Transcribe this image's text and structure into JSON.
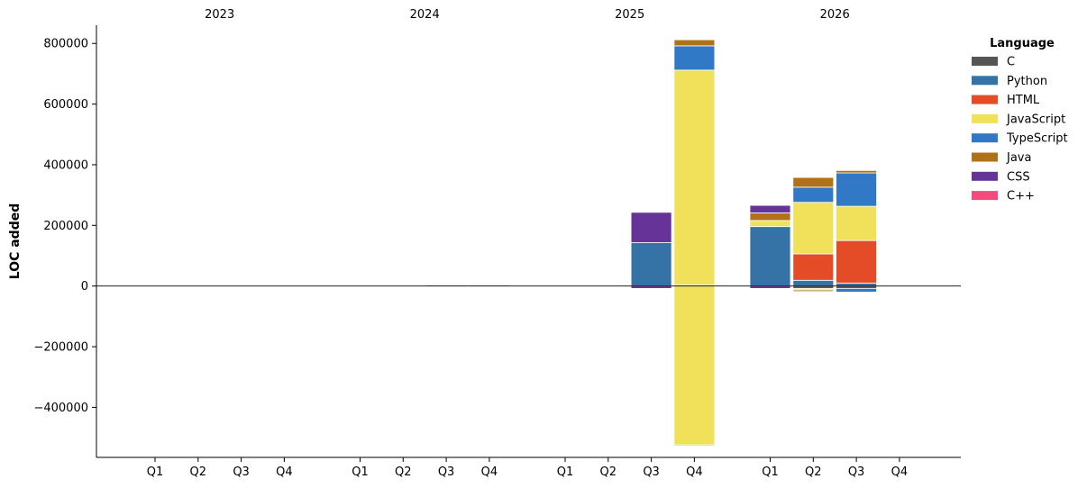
{
  "chart_data": {
    "type": "bar",
    "stacked": true,
    "ylabel": "LOC added",
    "ylim": [
      -565000,
      860000
    ],
    "yticks": [
      -400000,
      -200000,
      0,
      200000,
      400000,
      600000,
      800000
    ],
    "ytick_labels": [
      "−400000",
      "−200000",
      "0",
      "200000",
      "400000",
      "600000",
      "800000"
    ],
    "years": [
      "2023",
      "2024",
      "2025",
      "2026"
    ],
    "quarters": [
      "Q1",
      "Q2",
      "Q3",
      "Q4"
    ],
    "legend": {
      "title": "Language",
      "placement": "right-outside-top",
      "entries": [
        "C",
        "Python",
        "HTML",
        "JavaScript",
        "TypeScript",
        "Java",
        "CSS",
        "C++"
      ]
    },
    "colors": {
      "C": "#555555",
      "Python": "#3572A5",
      "HTML": "#E34C26",
      "JavaScript": "#F1E05A",
      "TypeScript": "#3178C6",
      "Java": "#B07219",
      "CSS": "#663399",
      "C++": "#F34B7D"
    },
    "bars": [
      {
        "year": "2023",
        "quarter": "Q1",
        "segments": []
      },
      {
        "year": "2023",
        "quarter": "Q2",
        "segments": []
      },
      {
        "year": "2023",
        "quarter": "Q3",
        "segments": []
      },
      {
        "year": "2023",
        "quarter": "Q4",
        "segments": []
      },
      {
        "year": "2024",
        "quarter": "Q1",
        "segments": []
      },
      {
        "year": "2024",
        "quarter": "Q2",
        "segments": []
      },
      {
        "year": "2024",
        "quarter": "Q3",
        "segments": [
          {
            "lang": "Python",
            "value": 3000
          }
        ]
      },
      {
        "year": "2024",
        "quarter": "Q4",
        "segments": [
          {
            "lang": "Python",
            "value": 3000
          }
        ]
      },
      {
        "year": "2025",
        "quarter": "Q1",
        "segments": []
      },
      {
        "year": "2025",
        "quarter": "Q2",
        "segments": []
      },
      {
        "year": "2025",
        "quarter": "Q3",
        "segments": [
          {
            "lang": "Python",
            "value": 143000
          },
          {
            "lang": "CSS",
            "value": 100000
          },
          {
            "lang": "CSS",
            "value": -8000
          }
        ]
      },
      {
        "year": "2025",
        "quarter": "Q4",
        "segments": [
          {
            "lang": "Python",
            "value": 4000
          },
          {
            "lang": "JavaScript",
            "value": 708000
          },
          {
            "lang": "TypeScript",
            "value": 80000
          },
          {
            "lang": "Java",
            "value": 20000
          },
          {
            "lang": "JavaScript",
            "value": -524000
          },
          {
            "lang": "TypeScript",
            "value": -3000
          }
        ]
      },
      {
        "year": "2026",
        "quarter": "Q1",
        "segments": [
          {
            "lang": "Python",
            "value": 196000
          },
          {
            "lang": "JavaScript",
            "value": 20000
          },
          {
            "lang": "Java",
            "value": 25000
          },
          {
            "lang": "CSS",
            "value": 25000
          },
          {
            "lang": "CSS",
            "value": -8000
          }
        ]
      },
      {
        "year": "2026",
        "quarter": "Q2",
        "segments": [
          {
            "lang": "Python",
            "value": 19000
          },
          {
            "lang": "HTML",
            "value": 87000
          },
          {
            "lang": "JavaScript",
            "value": 170000
          },
          {
            "lang": "TypeScript",
            "value": 50000
          },
          {
            "lang": "Java",
            "value": 32000
          },
          {
            "lang": "C",
            "value": -8000
          },
          {
            "lang": "JavaScript",
            "value": -5000
          },
          {
            "lang": "Java",
            "value": -5000
          }
        ]
      },
      {
        "year": "2026",
        "quarter": "Q3",
        "segments": [
          {
            "lang": "Python",
            "value": 10000
          },
          {
            "lang": "HTML",
            "value": 140000
          },
          {
            "lang": "JavaScript",
            "value": 113000
          },
          {
            "lang": "TypeScript",
            "value": 110000
          },
          {
            "lang": "Java",
            "value": 8000
          },
          {
            "lang": "C",
            "value": -8000
          },
          {
            "lang": "TypeScript",
            "value": -12000
          }
        ]
      },
      {
        "year": "2026",
        "quarter": "Q4",
        "segments": []
      }
    ]
  }
}
